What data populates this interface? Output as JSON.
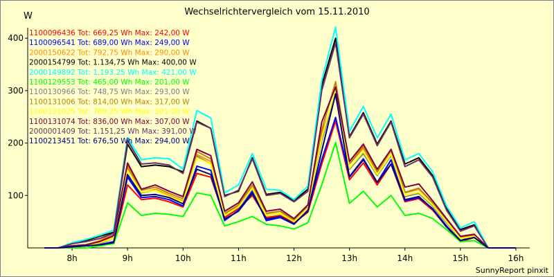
{
  "chart_data": {
    "type": "line",
    "title": "Wechselrichtervergleich vom 15.11.2010",
    "ylabel": "W",
    "xlabel": "",
    "ylim": [
      0,
      420
    ],
    "xlim": [
      7.2,
      16.25
    ],
    "y_ticks": [
      100,
      200,
      300,
      400
    ],
    "x_ticks": [
      {
        "value": 8,
        "label": "8h"
      },
      {
        "value": 9,
        "label": "9h"
      },
      {
        "value": 10,
        "label": "10h"
      },
      {
        "value": 11,
        "label": "11h"
      },
      {
        "value": 12,
        "label": "12h"
      },
      {
        "value": 13,
        "label": "13h"
      },
      {
        "value": 14,
        "label": "14h"
      },
      {
        "value": 15,
        "label": "15h"
      },
      {
        "value": 16,
        "label": "16h"
      }
    ],
    "grid": false,
    "legend_position": "top-left",
    "x": [
      7.5,
      7.75,
      8,
      8.25,
      8.5,
      8.75,
      9,
      9.25,
      9.5,
      9.75,
      10,
      10.25,
      10.5,
      10.75,
      11,
      11.25,
      11.5,
      11.75,
      12,
      12.25,
      12.5,
      12.75,
      13,
      13.25,
      13.5,
      13.75,
      14,
      14.25,
      14.5,
      14.75,
      15,
      15.25,
      15.5,
      15.75,
      16
    ],
    "series": [
      {
        "name": "1100096436 Tot: 669,25 Wh Max: 242,00 W",
        "color": "#ff0000",
        "values": [
          0,
          0,
          2,
          4,
          6,
          10,
          120,
          92,
          95,
          88,
          78,
          142,
          135,
          58,
          75,
          100,
          58,
          62,
          48,
          68,
          160,
          242,
          130,
          162,
          120,
          160,
          88,
          94,
          72,
          40,
          12,
          20,
          0,
          0,
          0
        ]
      },
      {
        "name": "1100096541 Tot: 689,00 Wh Max: 249,00 W",
        "color": "#0000ff",
        "values": [
          0,
          0,
          2,
          4,
          6,
          12,
          135,
          96,
          98,
          92,
          80,
          156,
          148,
          52,
          72,
          108,
          52,
          58,
          45,
          72,
          168,
          249,
          136,
          170,
          125,
          168,
          90,
          96,
          75,
          42,
          14,
          22,
          0,
          0,
          0
        ]
      },
      {
        "name": "2000150622 Tot: 792,75 Wh Max: 290,00 W",
        "color": "#ff8c00",
        "values": [
          0,
          0,
          4,
          6,
          14,
          28,
          155,
          105,
          112,
          100,
          90,
          178,
          165,
          65,
          80,
          115,
          65,
          70,
          52,
          78,
          220,
          290,
          160,
          190,
          145,
          185,
          105,
          112,
          86,
          55,
          22,
          24,
          0,
          0,
          0
        ]
      },
      {
        "name": "2000154799 Tot: 1.134,75 Wh Max: 400,00 W",
        "color": "#000000",
        "values": [
          0,
          0,
          8,
          14,
          22,
          30,
          198,
          155,
          158,
          155,
          145,
          242,
          228,
          100,
          108,
          172,
          102,
          106,
          90,
          112,
          310,
          400,
          212,
          258,
          198,
          242,
          160,
          172,
          138,
          75,
          35,
          44,
          0,
          0,
          0
        ]
      },
      {
        "name": "2000149892 Tot: 1.193,25 Wh Max: 421,00 W",
        "color": "#00ffff",
        "values": [
          0,
          0,
          10,
          16,
          24,
          34,
          210,
          168,
          172,
          170,
          150,
          262,
          248,
          105,
          120,
          180,
          112,
          110,
          92,
          118,
          320,
          421,
          222,
          270,
          210,
          255,
          168,
          180,
          145,
          80,
          38,
          50,
          0,
          0,
          0
        ]
      },
      {
        "name": "1100129553 Tot: 465,00 Wh Max: 201,00 W",
        "color": "#00ff00",
        "values": [
          0,
          0,
          0,
          0,
          4,
          8,
          86,
          62,
          66,
          64,
          60,
          105,
          100,
          42,
          50,
          60,
          45,
          42,
          36,
          48,
          120,
          201,
          85,
          108,
          78,
          100,
          62,
          66,
          56,
          35,
          12,
          14,
          0,
          0,
          0
        ]
      },
      {
        "name": "1100130966 Tot: 748,75 Wh Max: 293,00 W",
        "color": "#808080",
        "values": [
          0,
          0,
          2,
          4,
          8,
          18,
          150,
          105,
          110,
          98,
          88,
          175,
          160,
          62,
          78,
          112,
          62,
          66,
          50,
          76,
          205,
          293,
          150,
          180,
          138,
          176,
          98,
          104,
          80,
          48,
          18,
          22,
          0,
          0,
          0
        ]
      },
      {
        "name": "1100131006 Tot: 814,00 Wh Max: 317,00 W",
        "color": "#b8860b",
        "values": [
          0,
          0,
          4,
          6,
          12,
          22,
          158,
          110,
          116,
          104,
          94,
          184,
          170,
          66,
          82,
          120,
          66,
          70,
          54,
          80,
          225,
          317,
          160,
          194,
          145,
          188,
          106,
          114,
          86,
          54,
          20,
          24,
          0,
          0,
          0
        ]
      },
      {
        "name": "1100131025 Tot: 769,25 Wh Max: 301,00 W",
        "color": "#ffff00",
        "values": [
          0,
          0,
          2,
          4,
          10,
          18,
          148,
          106,
          110,
          98,
          88,
          172,
          160,
          62,
          78,
          114,
          62,
          66,
          50,
          76,
          210,
          301,
          152,
          184,
          140,
          178,
          100,
          106,
          82,
          50,
          18,
          22,
          0,
          0,
          0
        ]
      },
      {
        "name": "1100131074 Tot: 836,00 Wh Max: 307,00 W",
        "color": "#800040",
        "values": [
          0,
          0,
          4,
          6,
          12,
          24,
          162,
          112,
          120,
          108,
          98,
          188,
          176,
          70,
          86,
          126,
          70,
          74,
          56,
          82,
          240,
          307,
          165,
          198,
          150,
          188,
          116,
          122,
          90,
          56,
          22,
          26,
          0,
          0,
          0
        ]
      },
      {
        "name": "2000001409 Tot: 1.151,25 Wh Max: 391,00 W",
        "color": "#663366",
        "values": [
          0,
          0,
          8,
          12,
          18,
          28,
          205,
          160,
          162,
          158,
          142,
          240,
          228,
          98,
          110,
          170,
          100,
          104,
          88,
          108,
          300,
          391,
          210,
          255,
          195,
          240,
          155,
          168,
          135,
          72,
          32,
          42,
          0,
          0,
          0
        ]
      },
      {
        "name": "1100213451 Tot: 676,50 Wh Max: 294,00 W",
        "color": "#000080",
        "values": [
          0,
          0,
          2,
          4,
          6,
          10,
          140,
          100,
          102,
          96,
          84,
          150,
          140,
          55,
          70,
          104,
          55,
          60,
          46,
          70,
          185,
          294,
          135,
          168,
          125,
          160,
          92,
          98,
          74,
          40,
          14,
          20,
          0,
          0,
          0
        ]
      }
    ]
  },
  "footer": "SunnyReport pinxit"
}
